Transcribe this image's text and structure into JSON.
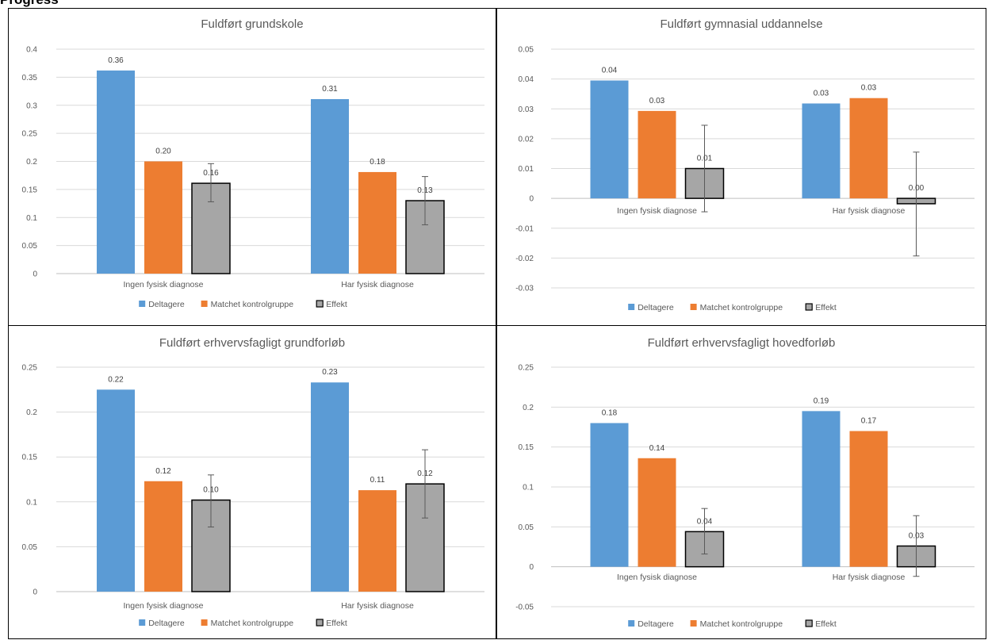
{
  "page": {
    "header": "Progress"
  },
  "legend": {
    "items": [
      {
        "name": "Deltagere",
        "color": "#5b9bd5",
        "border": "#5b9bd5"
      },
      {
        "name": "Matchet kontrolgruppe",
        "color": "#ed7d31",
        "border": "#ed7d31"
      },
      {
        "name": "Effekt",
        "color": "#a6a6a6",
        "border": "#000000"
      }
    ]
  },
  "chart_data": [
    {
      "type": "bar",
      "title": "Fuldført grundskole",
      "categories": [
        "Ingen fysisk diagnose",
        "Har fysisk diagnose"
      ],
      "ylim": [
        0,
        0.4
      ],
      "yticks": [
        0,
        0.05,
        0.1,
        0.15,
        0.2,
        0.25,
        0.3,
        0.35,
        0.4
      ],
      "ytick_labels": [
        "0",
        "0.05",
        "0.1",
        "0.15",
        "0.2",
        "0.25",
        "0.3",
        "0.35",
        "0.4"
      ],
      "grid": true,
      "legend_position": "bottom",
      "series": [
        {
          "name": "Deltagere",
          "values": [
            0.362,
            0.311
          ],
          "labels": [
            "0.36",
            "0.31"
          ]
        },
        {
          "name": "Matchet kontrolgruppe",
          "values": [
            0.2,
            0.181
          ],
          "labels": [
            "0.20",
            "0.18"
          ]
        },
        {
          "name": "Effekt",
          "values": [
            0.161,
            0.13
          ],
          "labels": [
            "0.16",
            "0.13"
          ],
          "error_low": [
            0.128,
            0.087
          ],
          "error_high": [
            0.196,
            0.173
          ]
        }
      ]
    },
    {
      "type": "bar",
      "title": "Fuldført gymnasial uddannelse",
      "categories": [
        "Ingen fysisk diagnose",
        "Har fysisk diagnose"
      ],
      "ylim": [
        -0.03,
        0.05
      ],
      "yticks": [
        -0.03,
        -0.02,
        -0.01,
        0,
        0.01,
        0.02,
        0.03,
        0.04,
        0.05
      ],
      "ytick_labels": [
        "-0.03",
        "-0.02",
        "-0.01",
        "0",
        "0.01",
        "0.02",
        "0.03",
        "0.04",
        "0.05"
      ],
      "grid": true,
      "legend_position": "bottom",
      "series": [
        {
          "name": "Deltagere",
          "values": [
            0.0395,
            0.0318
          ],
          "labels": [
            "0.04",
            "0.03"
          ]
        },
        {
          "name": "Matchet kontrolgruppe",
          "values": [
            0.0293,
            0.0336
          ],
          "labels": [
            "0.03",
            "0.03"
          ]
        },
        {
          "name": "Effekt",
          "values": [
            0.01,
            -0.0018
          ],
          "labels": [
            "0.01",
            "0.00"
          ],
          "error_low": [
            -0.0045,
            -0.0193
          ],
          "error_high": [
            0.0245,
            0.0155
          ]
        }
      ]
    },
    {
      "type": "bar",
      "title": "Fuldført erhvervsfagligt grundforløb",
      "categories": [
        "Ingen fysisk diagnose",
        "Har fysisk diagnose"
      ],
      "ylim": [
        0,
        0.25
      ],
      "yticks": [
        0,
        0.05,
        0.1,
        0.15,
        0.2,
        0.25
      ],
      "ytick_labels": [
        "0",
        "0.05",
        "0.1",
        "0.15",
        "0.2",
        "0.25"
      ],
      "grid": true,
      "legend_position": "bottom",
      "series": [
        {
          "name": "Deltagere",
          "values": [
            0.225,
            0.233
          ],
          "labels": [
            "0.22",
            "0.23"
          ]
        },
        {
          "name": "Matchet kontrolgruppe",
          "values": [
            0.123,
            0.113
          ],
          "labels": [
            "0.12",
            "0.11"
          ]
        },
        {
          "name": "Effekt",
          "values": [
            0.102,
            0.12
          ],
          "labels": [
            "0.10",
            "0.12"
          ],
          "error_low": [
            0.072,
            0.082
          ],
          "error_high": [
            0.13,
            0.158
          ]
        }
      ]
    },
    {
      "type": "bar",
      "title": "Fuldført erhvervsfagligt hovedforløb",
      "categories": [
        "Ingen fysisk diagnose",
        "Har fysisk diagnose"
      ],
      "ylim": [
        -0.05,
        0.25
      ],
      "yticks": [
        -0.05,
        0,
        0.05,
        0.1,
        0.15,
        0.2,
        0.25
      ],
      "ytick_labels": [
        "-0.05",
        "0",
        "0.05",
        "0.1",
        "0.15",
        "0.2",
        "0.25"
      ],
      "grid": true,
      "legend_position": "bottom",
      "series": [
        {
          "name": "Deltagere",
          "values": [
            0.18,
            0.195
          ],
          "labels": [
            "0.18",
            "0.19"
          ]
        },
        {
          "name": "Matchet kontrolgruppe",
          "values": [
            0.136,
            0.17
          ],
          "labels": [
            "0.14",
            "0.17"
          ]
        },
        {
          "name": "Effekt",
          "values": [
            0.044,
            0.026
          ],
          "labels": [
            "0.04",
            "0.03"
          ],
          "error_low": [
            0.016,
            -0.012
          ],
          "error_high": [
            0.073,
            0.064
          ]
        }
      ]
    }
  ]
}
